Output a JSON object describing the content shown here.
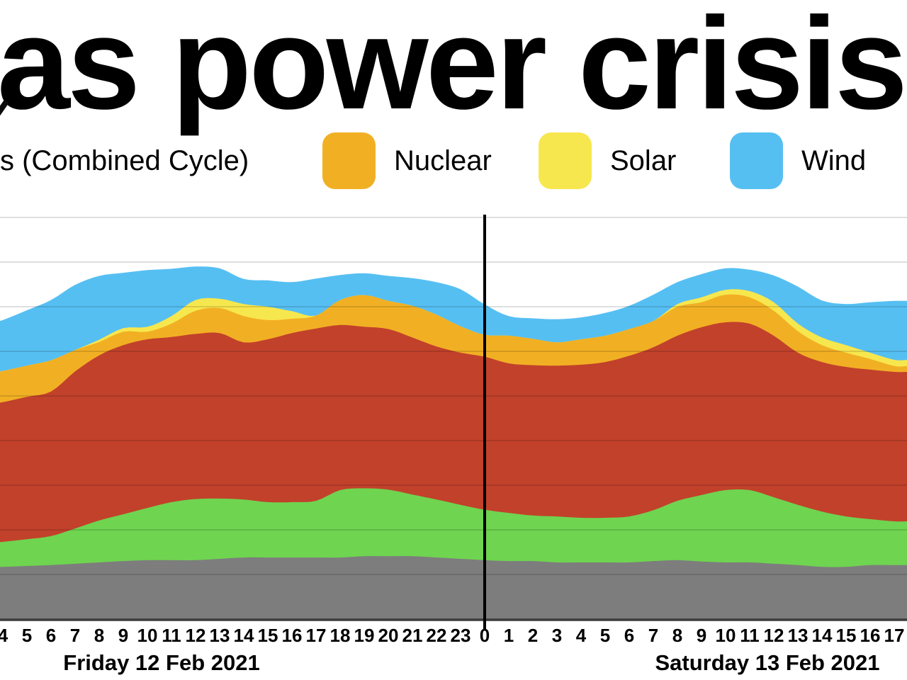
{
  "title": {
    "visible_text": "as power crisis"
  },
  "legend": {
    "items": [
      {
        "label": "s (Combined Cycle)",
        "swatch_color": null
      },
      {
        "label": "Nuclear",
        "swatch_color": "#f1b024"
      },
      {
        "label": "Solar",
        "swatch_color": "#f7e74e"
      },
      {
        "label": "Wind",
        "swatch_color": "#56bff2"
      }
    ]
  },
  "chart_data": {
    "type": "area",
    "stacked": true,
    "grid": true,
    "y_axis": {
      "tick_labels_visible": false,
      "unit": "gridline intervals (axis labels cropped)",
      "ylim": [
        0,
        9
      ]
    },
    "x_tick_labels": [
      "4",
      "5",
      "6",
      "7",
      "8",
      "9",
      "10",
      "11",
      "12",
      "13",
      "14",
      "15",
      "16",
      "17",
      "18",
      "19",
      "20",
      "21",
      "22",
      "23",
      "0",
      "1",
      "2",
      "3",
      "4",
      "5",
      "6",
      "7",
      "8",
      "9",
      "10",
      "11",
      "12",
      "13",
      "14",
      "15",
      "16",
      "17"
    ],
    "midnight_divider_at_label_index": 20,
    "day_labels": [
      "Friday 12 Feb 2021",
      "Saturday 13 Feb 2021"
    ],
    "series": [
      {
        "name": "gray",
        "color": "#7d7d7d",
        "values": [
          1.17,
          1.19,
          1.21,
          1.24,
          1.27,
          1.3,
          1.32,
          1.32,
          1.32,
          1.35,
          1.38,
          1.38,
          1.38,
          1.38,
          1.38,
          1.41,
          1.41,
          1.41,
          1.38,
          1.35,
          1.32,
          1.3,
          1.3,
          1.27,
          1.27,
          1.27,
          1.27,
          1.3,
          1.32,
          1.29,
          1.27,
          1.27,
          1.24,
          1.21,
          1.17,
          1.17,
          1.21,
          1.21
        ]
      },
      {
        "name": "green",
        "color": "#6fd450",
        "values": [
          0.56,
          0.6,
          0.65,
          0.79,
          0.94,
          1.05,
          1.17,
          1.3,
          1.37,
          1.35,
          1.3,
          1.24,
          1.24,
          1.27,
          1.51,
          1.52,
          1.49,
          1.38,
          1.3,
          1.21,
          1.13,
          1.08,
          1.02,
          1.03,
          1.0,
          1.0,
          1.03,
          1.14,
          1.33,
          1.49,
          1.62,
          1.62,
          1.49,
          1.35,
          1.24,
          1.13,
          1.03,
          0.98
        ]
      },
      {
        "name": "red",
        "color": "#c2412b",
        "values": [
          3.13,
          3.19,
          3.24,
          3.52,
          3.7,
          3.79,
          3.78,
          3.7,
          3.7,
          3.71,
          3.52,
          3.65,
          3.79,
          3.86,
          3.7,
          3.62,
          3.6,
          3.52,
          3.43,
          3.41,
          3.43,
          3.35,
          3.37,
          3.38,
          3.43,
          3.49,
          3.6,
          3.65,
          3.7,
          3.76,
          3.76,
          3.73,
          3.62,
          3.41,
          3.35,
          3.35,
          3.35,
          3.35
        ]
      },
      {
        "name": "nuclear",
        "color": "#f1b024",
        "values": [
          0.7,
          0.7,
          0.7,
          0.48,
          0.3,
          0.3,
          0.17,
          0.3,
          0.52,
          0.56,
          0.59,
          0.43,
          0.32,
          0.29,
          0.56,
          0.71,
          0.63,
          0.71,
          0.71,
          0.59,
          0.49,
          0.62,
          0.59,
          0.52,
          0.57,
          0.59,
          0.6,
          0.59,
          0.65,
          0.56,
          0.62,
          0.59,
          0.56,
          0.48,
          0.38,
          0.32,
          0.24,
          0.13
        ]
      },
      {
        "name": "solar",
        "color": "#f7e74e",
        "values": [
          0,
          0,
          0,
          0,
          0.05,
          0.08,
          0.11,
          0.17,
          0.24,
          0.21,
          0.27,
          0.3,
          0.17,
          0,
          0,
          0,
          0,
          0,
          0,
          0,
          0,
          0,
          0,
          0,
          0,
          0,
          0,
          0,
          0.06,
          0.11,
          0.11,
          0.14,
          0.19,
          0.17,
          0.17,
          0.17,
          0.14,
          0.14
        ]
      },
      {
        "name": "wind",
        "color": "#56bff2",
        "values": [
          1.14,
          1.24,
          1.35,
          1.46,
          1.43,
          1.24,
          1.27,
          1.06,
          0.75,
          0.68,
          0.56,
          0.59,
          0.65,
          0.83,
          0.56,
          0.49,
          0.56,
          0.62,
          0.73,
          0.83,
          0.68,
          0.44,
          0.46,
          0.52,
          0.49,
          0.51,
          0.52,
          0.59,
          0.49,
          0.52,
          0.48,
          0.48,
          0.6,
          0.83,
          0.83,
          0.92,
          1.13,
          1.32
        ]
      }
    ]
  }
}
